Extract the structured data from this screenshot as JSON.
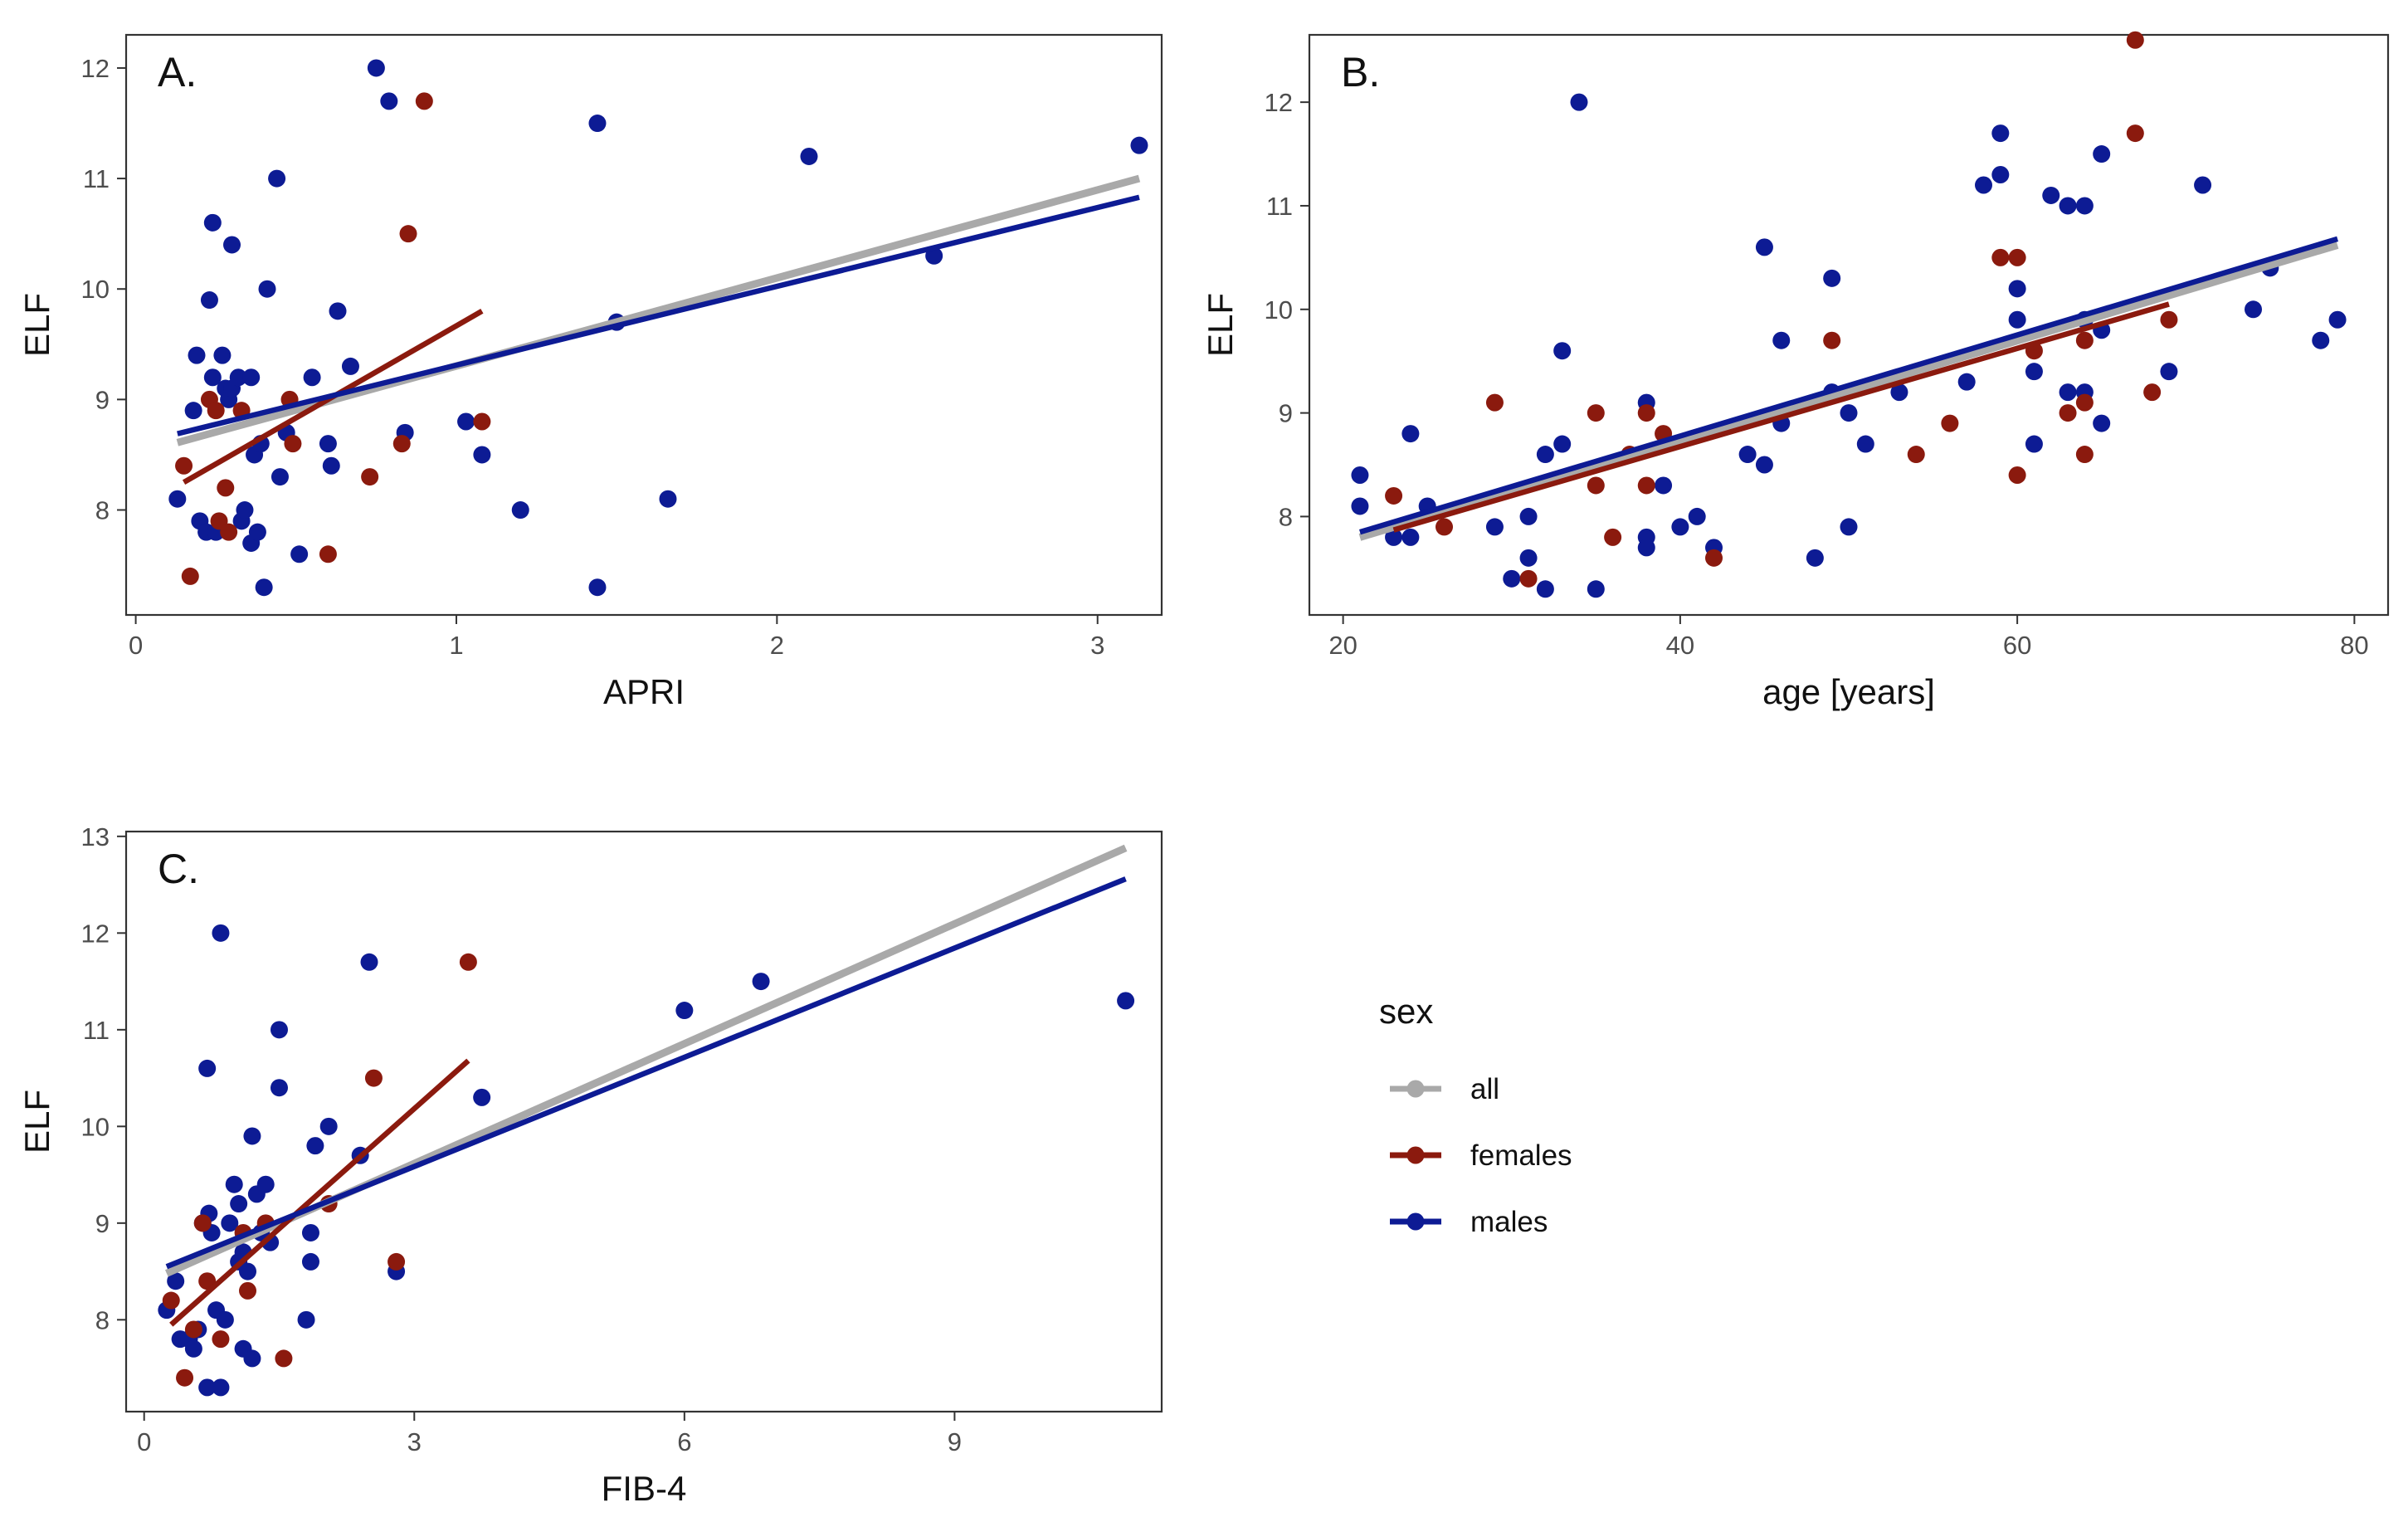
{
  "colors": {
    "all": "#a9a9a9",
    "females": "#8b1a0e",
    "males": "#0d1b94",
    "axis": "#333333",
    "tick_label": "#4d4d4d"
  },
  "legend": {
    "title": "sex",
    "items": [
      {
        "key": "all",
        "label": "all"
      },
      {
        "key": "females",
        "label": "females"
      },
      {
        "key": "males",
        "label": "males"
      }
    ]
  },
  "chart_data": [
    {
      "id": "A",
      "type": "scatter",
      "title": "A.",
      "xlabel": "APRI",
      "ylabel": "ELF",
      "xlim": [
        -0.03,
        3.2
      ],
      "ylim": [
        7.05,
        12.3
      ],
      "xticks": [
        0,
        1,
        2,
        3
      ],
      "yticks": [
        8,
        9,
        10,
        11,
        12
      ],
      "series": [
        {
          "name": "males",
          "points": [
            [
              0.13,
              8.1
            ],
            [
              0.18,
              8.9
            ],
            [
              0.19,
              9.4
            ],
            [
              0.2,
              7.9
            ],
            [
              0.22,
              7.8
            ],
            [
              0.23,
              9.9
            ],
            [
              0.24,
              9.2
            ],
            [
              0.24,
              10.6
            ],
            [
              0.25,
              7.8
            ],
            [
              0.27,
              9.4
            ],
            [
              0.28,
              9.1
            ],
            [
              0.29,
              9.0
            ],
            [
              0.3,
              9.1
            ],
            [
              0.3,
              10.4
            ],
            [
              0.32,
              9.2
            ],
            [
              0.33,
              7.9
            ],
            [
              0.34,
              8.0
            ],
            [
              0.36,
              9.2
            ],
            [
              0.36,
              7.7
            ],
            [
              0.37,
              8.5
            ],
            [
              0.38,
              7.8
            ],
            [
              0.39,
              8.6
            ],
            [
              0.4,
              7.3
            ],
            [
              0.41,
              10.0
            ],
            [
              0.44,
              11.0
            ],
            [
              0.45,
              8.3
            ],
            [
              0.47,
              8.7
            ],
            [
              0.51,
              7.6
            ],
            [
              0.55,
              9.2
            ],
            [
              0.6,
              8.6
            ],
            [
              0.61,
              8.4
            ],
            [
              0.63,
              9.8
            ],
            [
              0.67,
              9.3
            ],
            [
              0.75,
              12.0
            ],
            [
              0.79,
              11.7
            ],
            [
              0.84,
              8.7
            ],
            [
              1.03,
              8.8
            ],
            [
              1.08,
              8.5
            ],
            [
              1.2,
              8.0
            ],
            [
              1.44,
              7.3
            ],
            [
              1.44,
              11.5
            ],
            [
              1.5,
              9.7
            ],
            [
              1.66,
              8.1
            ],
            [
              2.1,
              11.2
            ],
            [
              2.49,
              10.3
            ],
            [
              3.13,
              11.3
            ]
          ]
        },
        {
          "name": "females",
          "points": [
            [
              0.15,
              8.4
            ],
            [
              0.17,
              7.4
            ],
            [
              0.23,
              9.0
            ],
            [
              0.25,
              8.9
            ],
            [
              0.26,
              7.9
            ],
            [
              0.28,
              8.2
            ],
            [
              0.29,
              7.8
            ],
            [
              0.33,
              8.9
            ],
            [
              0.48,
              9.0
            ],
            [
              0.49,
              8.6
            ],
            [
              0.6,
              7.6
            ],
            [
              0.73,
              8.3
            ],
            [
              0.83,
              8.6
            ],
            [
              0.85,
              10.5
            ],
            [
              0.9,
              11.7
            ],
            [
              1.08,
              8.8
            ]
          ]
        }
      ],
      "fits": [
        {
          "name": "all",
          "x": [
            0.13,
            3.13
          ],
          "y": [
            8.61,
            11.0
          ]
        },
        {
          "name": "females",
          "x": [
            0.15,
            1.08
          ],
          "y": [
            8.25,
            9.8
          ]
        },
        {
          "name": "males",
          "x": [
            0.13,
            3.13
          ],
          "y": [
            8.69,
            10.83
          ]
        }
      ]
    },
    {
      "id": "B",
      "type": "scatter",
      "title": "B.",
      "xlabel": "age [years]",
      "ylabel": "ELF",
      "xlim": [
        18,
        82
      ],
      "ylim": [
        7.05,
        12.65
      ],
      "xticks": [
        20,
        40,
        60,
        80
      ],
      "yticks": [
        8,
        9,
        10,
        11,
        12
      ],
      "series": [
        {
          "name": "males",
          "points": [
            [
              21,
              8.4
            ],
            [
              21,
              8.1
            ],
            [
              23,
              7.8
            ],
            [
              24,
              8.8
            ],
            [
              24,
              7.8
            ],
            [
              25,
              8.1
            ],
            [
              29,
              7.9
            ],
            [
              30,
              7.4
            ],
            [
              31,
              8.0
            ],
            [
              31,
              7.6
            ],
            [
              32,
              7.3
            ],
            [
              32,
              8.6
            ],
            [
              33,
              8.7
            ],
            [
              33,
              9.6
            ],
            [
              34,
              12.0
            ],
            [
              35,
              7.3
            ],
            [
              38,
              9.1
            ],
            [
              38,
              7.8
            ],
            [
              38,
              7.7
            ],
            [
              39,
              8.3
            ],
            [
              40,
              7.9
            ],
            [
              41,
              8.0
            ],
            [
              42,
              7.7
            ],
            [
              44,
              8.6
            ],
            [
              45,
              8.5
            ],
            [
              45,
              10.6
            ],
            [
              46,
              9.7
            ],
            [
              46,
              8.9
            ],
            [
              48,
              7.6
            ],
            [
              49,
              10.3
            ],
            [
              49,
              9.2
            ],
            [
              50,
              9.0
            ],
            [
              50,
              7.9
            ],
            [
              51,
              8.7
            ],
            [
              53,
              9.2
            ],
            [
              57,
              9.3
            ],
            [
              58,
              11.2
            ],
            [
              59,
              11.3
            ],
            [
              59,
              11.7
            ],
            [
              60,
              10.2
            ],
            [
              60,
              9.9
            ],
            [
              61,
              9.4
            ],
            [
              61,
              8.7
            ],
            [
              62,
              11.1
            ],
            [
              63,
              11.0
            ],
            [
              63,
              9.2
            ],
            [
              64,
              11.0
            ],
            [
              64,
              9.9
            ],
            [
              64,
              9.2
            ],
            [
              65,
              11.5
            ],
            [
              65,
              9.8
            ],
            [
              65,
              8.9
            ],
            [
              69,
              9.4
            ],
            [
              71,
              11.2
            ],
            [
              74,
              10.0
            ],
            [
              75,
              10.4
            ],
            [
              78,
              9.7
            ],
            [
              79,
              9.9
            ]
          ]
        },
        {
          "name": "females",
          "points": [
            [
              23,
              8.2
            ],
            [
              26,
              7.9
            ],
            [
              29,
              9.1
            ],
            [
              31,
              7.4
            ],
            [
              35,
              9.0
            ],
            [
              35,
              8.3
            ],
            [
              36,
              7.8
            ],
            [
              37,
              8.6
            ],
            [
              38,
              9.0
            ],
            [
              38,
              8.3
            ],
            [
              39,
              8.8
            ],
            [
              42,
              7.6
            ],
            [
              49,
              9.7
            ],
            [
              54,
              8.6
            ],
            [
              56,
              8.9
            ],
            [
              59,
              10.5
            ],
            [
              60,
              10.5
            ],
            [
              60,
              8.4
            ],
            [
              61,
              9.6
            ],
            [
              63,
              9.0
            ],
            [
              64,
              9.7
            ],
            [
              64,
              9.1
            ],
            [
              64,
              8.6
            ],
            [
              67,
              12.6
            ],
            [
              67,
              11.7
            ],
            [
              68,
              9.2
            ],
            [
              69,
              9.9
            ]
          ]
        }
      ],
      "fits": [
        {
          "name": "all",
          "x": [
            21,
            79
          ],
          "y": [
            7.8,
            10.62
          ]
        },
        {
          "name": "females",
          "x": [
            23,
            69
          ],
          "y": [
            7.87,
            10.05
          ]
        },
        {
          "name": "males",
          "x": [
            21,
            79
          ],
          "y": [
            7.85,
            10.68
          ]
        }
      ]
    },
    {
      "id": "C",
      "type": "scatter",
      "title": "C.",
      "xlabel": "FIB-4",
      "ylabel": "ELF",
      "xlim": [
        -0.2,
        11.3
      ],
      "ylim": [
        7.05,
        13.05
      ],
      "xticks": [
        0,
        3,
        6,
        9
      ],
      "yticks": [
        8,
        9,
        10,
        11,
        12,
        13
      ],
      "series": [
        {
          "name": "males",
          "points": [
            [
              0.25,
              8.1
            ],
            [
              0.35,
              8.4
            ],
            [
              0.4,
              7.8
            ],
            [
              0.5,
              7.8
            ],
            [
              0.55,
              7.7
            ],
            [
              0.6,
              7.9
            ],
            [
              0.65,
              9.0
            ],
            [
              0.7,
              7.3
            ],
            [
              0.7,
              10.6
            ],
            [
              0.72,
              9.1
            ],
            [
              0.75,
              8.9
            ],
            [
              0.8,
              8.1
            ],
            [
              0.85,
              7.3
            ],
            [
              0.85,
              12.0
            ],
            [
              0.9,
              8.0
            ],
            [
              0.95,
              9.0
            ],
            [
              1.0,
              9.4
            ],
            [
              1.05,
              8.6
            ],
            [
              1.05,
              9.2
            ],
            [
              1.1,
              7.7
            ],
            [
              1.1,
              8.7
            ],
            [
              1.15,
              8.5
            ],
            [
              1.2,
              9.9
            ],
            [
              1.2,
              7.6
            ],
            [
              1.25,
              9.3
            ],
            [
              1.3,
              8.9
            ],
            [
              1.35,
              9.4
            ],
            [
              1.4,
              8.8
            ],
            [
              1.5,
              11.0
            ],
            [
              1.5,
              10.4
            ],
            [
              1.8,
              8.0
            ],
            [
              1.85,
              8.6
            ],
            [
              1.85,
              8.9
            ],
            [
              1.9,
              9.8
            ],
            [
              2.05,
              10.0
            ],
            [
              2.4,
              9.7
            ],
            [
              2.5,
              11.7
            ],
            [
              2.8,
              8.5
            ],
            [
              3.75,
              10.3
            ],
            [
              6.0,
              11.2
            ],
            [
              6.85,
              11.5
            ],
            [
              10.9,
              11.3
            ]
          ]
        },
        {
          "name": "females",
          "points": [
            [
              0.3,
              8.2
            ],
            [
              0.45,
              7.4
            ],
            [
              0.55,
              7.9
            ],
            [
              0.65,
              9.0
            ],
            [
              0.7,
              8.4
            ],
            [
              0.85,
              7.8
            ],
            [
              1.1,
              8.9
            ],
            [
              1.15,
              8.3
            ],
            [
              1.35,
              9.0
            ],
            [
              1.55,
              7.6
            ],
            [
              2.05,
              9.2
            ],
            [
              2.55,
              10.5
            ],
            [
              2.8,
              8.6
            ],
            [
              3.6,
              11.7
            ]
          ]
        }
      ],
      "fits": [
        {
          "name": "all",
          "x": [
            0.25,
            10.9
          ],
          "y": [
            8.48,
            12.88
          ]
        },
        {
          "name": "females",
          "x": [
            0.3,
            3.6
          ],
          "y": [
            7.95,
            10.68
          ]
        },
        {
          "name": "males",
          "x": [
            0.25,
            10.9
          ],
          "y": [
            8.55,
            12.56
          ]
        }
      ]
    }
  ]
}
